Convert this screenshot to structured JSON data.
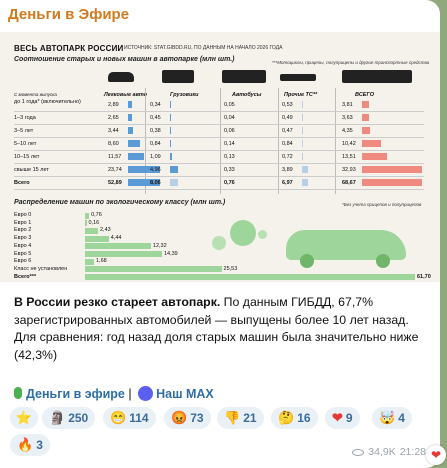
{
  "channel": {
    "name": "Деньги в Эфире"
  },
  "infographic": {
    "title": "ВЕСЬ АВТОПАРК РОССИИ",
    "source": "ИСТОЧНИК: STAT.GIBDD.RU, ПО ДАННЫМ НА НАЧАЛО 2026 ГОДА",
    "subtitle": "Соотношение старых и новых машин в автопарке (млн шт.)",
    "note_top": "***Мотоциклы, прицепы, полуприцепы и другие транспортные средства",
    "age_header": "С момента выпуска",
    "columns": [
      "Легковые авто",
      "Грузовики",
      "Автобусы",
      "Прочие ТС**",
      "ВСЕГО"
    ],
    "rows": [
      {
        "label": "до 1 года* (включительно)",
        "values": [
          "2,89",
          "0,34",
          "0,05",
          "0,53",
          "3,81"
        ]
      },
      {
        "label": "1–3 года",
        "values": [
          "2,65",
          "0,45",
          "0,04",
          "0,49",
          "3,63"
        ]
      },
      {
        "label": "3–5 лет",
        "values": [
          "3,44",
          "0,38",
          "0,06",
          "0,47",
          "4,35"
        ]
      },
      {
        "label": "5–10 лет",
        "values": [
          "8,60",
          "0,84",
          "0,14",
          "0,84",
          "10,42"
        ]
      },
      {
        "label": "10–15 лет",
        "values": [
          "11,57",
          "1,09",
          "0,13",
          "0,72",
          "13,51"
        ]
      },
      {
        "label": "свыше 15 лет",
        "values": [
          "23,74",
          "4,96",
          "0,33",
          "3,89",
          "32,93"
        ]
      },
      {
        "label": "Всего",
        "values": [
          "52,89",
          "8,06",
          "0,76",
          "6,97",
          "68,67"
        ]
      }
    ],
    "eco_title": "Распределение машин по экологическому классу (млн шт.)",
    "eco_note": "*Без учета прицепов и полуприцепов",
    "eco": [
      {
        "label": "Евро 0",
        "value": 0.76,
        "text": "0,76"
      },
      {
        "label": "Евро 1",
        "value": 0.16,
        "text": "0,16"
      },
      {
        "label": "Евро 2",
        "value": 2.43,
        "text": "2,43"
      },
      {
        "label": "Евро 3",
        "value": 4.44,
        "text": "4,44"
      },
      {
        "label": "Евро 4",
        "value": 12.32,
        "text": "12,32"
      },
      {
        "label": "Евро 5",
        "value": 14.39,
        "text": "14,39"
      },
      {
        "label": "Евро 6",
        "value": 1.68,
        "text": "1,68"
      },
      {
        "label": "Класс не установлен",
        "value": 25.53,
        "text": "25,53"
      },
      {
        "label": "Всего***",
        "value": 61.7,
        "text": "61,70"
      }
    ]
  },
  "caption": {
    "bold": "В России резко стареет автопарк.",
    "text": " По данным ГИБДД, 67,7% зарегистрированных автомобилей — выпущены более 10 лет назад. Для сравнения: год назад доля старых машин была значительно ниже (42,3%)"
  },
  "links": {
    "channel": "Деньги в эфире",
    "separator": "|",
    "max": "Наш MAX"
  },
  "reactions": [
    {
      "emoji": "⭐",
      "count": ""
    },
    {
      "emoji": "🗿",
      "count": "250"
    },
    {
      "emoji": "😁",
      "count": "114"
    },
    {
      "emoji": "😡",
      "count": "73"
    },
    {
      "emoji": "👎",
      "count": "21"
    },
    {
      "emoji": "🤔",
      "count": "16"
    },
    {
      "emoji": "❤",
      "count": "9"
    },
    {
      "emoji": "🤯",
      "count": "4"
    },
    {
      "emoji": "🔥",
      "count": "3"
    }
  ],
  "meta": {
    "views": "34,9K",
    "time": "21:28"
  }
}
